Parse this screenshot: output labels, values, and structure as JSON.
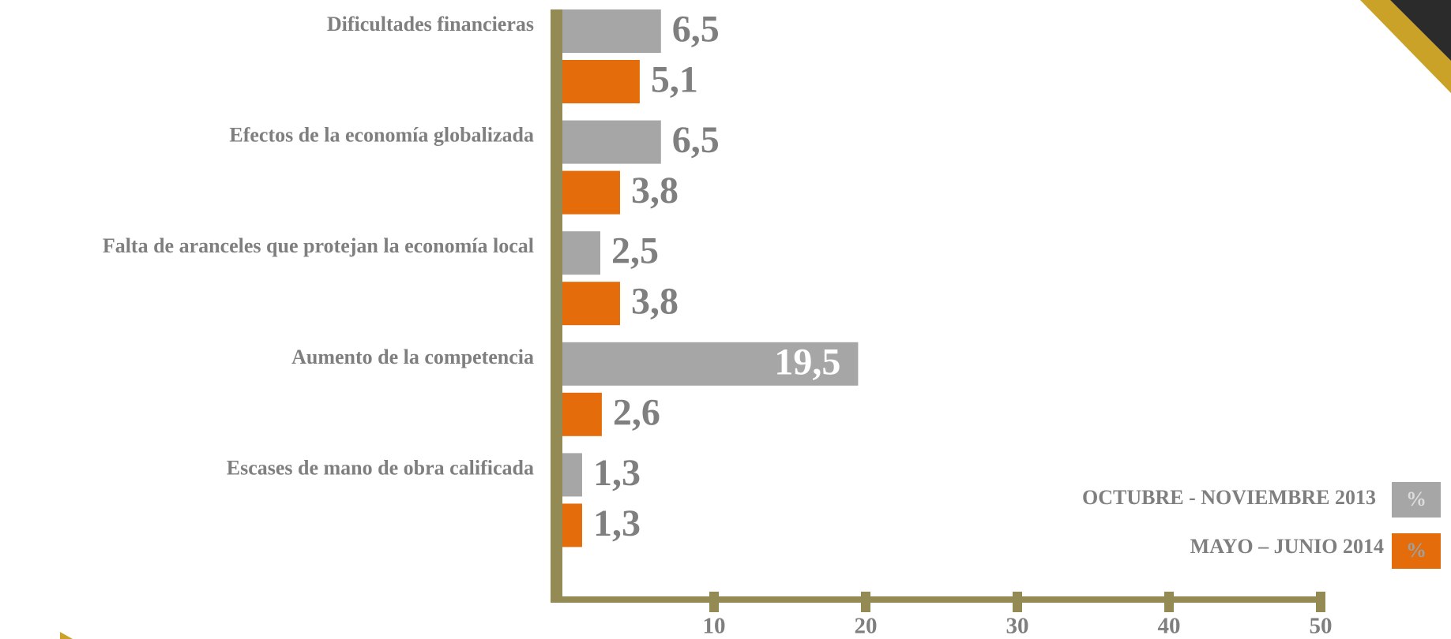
{
  "chart_data": {
    "type": "bar",
    "orientation": "horizontal",
    "categories": [
      "Dificultades financieras",
      "Efectos de la economía globalizada",
      "Falta de aranceles que protejan la economía local",
      "Aumento de la competencia",
      "Escases de mano de obra calificada"
    ],
    "series": [
      {
        "name": "OCTUBRE - NOVIEMBRE 2013",
        "color": "#a6a6a6",
        "values": [
          6.5,
          6.5,
          2.5,
          19.5,
          1.3
        ],
        "value_labels": [
          "6,5",
          "6,5",
          "2,5",
          "19,5",
          "1,3"
        ]
      },
      {
        "name": "MAYO – JUNIO 2014",
        "color": "#e46c0a",
        "values": [
          5.1,
          3.8,
          3.8,
          2.6,
          1.3
        ],
        "value_labels": [
          "5,1",
          "3,8",
          "3,8",
          "2,6",
          "1,3"
        ]
      }
    ],
    "unit": "%",
    "xlim": [
      0,
      50
    ],
    "xticks": [
      10,
      20,
      30,
      40,
      50
    ],
    "grid": false,
    "legend": "lower right"
  }
}
